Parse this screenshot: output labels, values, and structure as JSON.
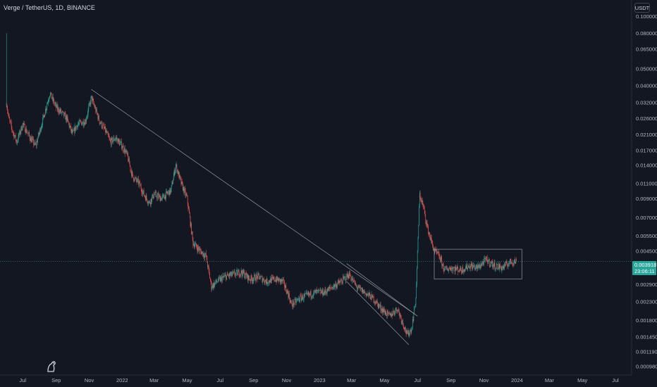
{
  "symbol_title": "Verge / TetherUS, 1D, BINANCE",
  "currency_label": "USDT",
  "current_price": "0.003918",
  "countdown": "23:06:11",
  "logo_icon": "tradingview-logo-icon",
  "colors": {
    "background": "#131722",
    "up": "#26a69a",
    "down": "#ef5350",
    "drawing": "#9598a1"
  },
  "chart_data": {
    "type": "candlestick",
    "title": "Verge / TetherUS, 1D, BINANCE",
    "y_scale": "log",
    "ylim": [
      0.00088,
      0.115
    ],
    "xlim": [
      "2021-05-20",
      "2024-07-31"
    ],
    "grid": false,
    "y_ticks": [
      "0.100000",
      "0.080000",
      "0.065000",
      "0.050000",
      "0.040000",
      "0.032000",
      "0.026000",
      "0.021000",
      "0.017000",
      "0.014000",
      "0.011000",
      "0.009000",
      "0.007000",
      "0.005500",
      "0.004500",
      "0.002900",
      "0.002300",
      "0.001800",
      "0.001450",
      "0.001190",
      "0.000980"
    ],
    "x_ticks": [
      {
        "label": "Jul",
        "date": "2021-07-01"
      },
      {
        "label": "Sep",
        "date": "2021-09-01"
      },
      {
        "label": "Nov",
        "date": "2021-11-01"
      },
      {
        "label": "2022",
        "date": "2022-01-01"
      },
      {
        "label": "Mar",
        "date": "2022-03-01"
      },
      {
        "label": "May",
        "date": "2022-05-01"
      },
      {
        "label": "Jul",
        "date": "2022-07-01"
      },
      {
        "label": "Sep",
        "date": "2022-09-01"
      },
      {
        "label": "Nov",
        "date": "2022-11-01"
      },
      {
        "label": "2023",
        "date": "2023-01-01"
      },
      {
        "label": "Mar",
        "date": "2023-03-01"
      },
      {
        "label": "May",
        "date": "2023-05-01"
      },
      {
        "label": "Jul",
        "date": "2023-07-01"
      },
      {
        "label": "Sep",
        "date": "2023-09-01"
      },
      {
        "label": "Nov",
        "date": "2023-11-01"
      },
      {
        "label": "2024",
        "date": "2024-01-01"
      },
      {
        "label": "Mar",
        "date": "2024-03-01"
      },
      {
        "label": "May",
        "date": "2024-05-01"
      },
      {
        "label": "Jul",
        "date": "2024-07-01"
      }
    ],
    "price_path": [
      [
        "2021-06-01",
        0.032
      ],
      [
        "2021-06-05",
        0.026
      ],
      [
        "2021-06-12",
        0.022
      ],
      [
        "2021-06-20",
        0.019
      ],
      [
        "2021-07-01",
        0.024
      ],
      [
        "2021-07-15",
        0.02
      ],
      [
        "2021-07-25",
        0.018
      ],
      [
        "2021-08-05",
        0.024
      ],
      [
        "2021-08-20",
        0.036
      ],
      [
        "2021-09-01",
        0.03
      ],
      [
        "2021-09-20",
        0.026
      ],
      [
        "2021-10-01",
        0.021
      ],
      [
        "2021-10-10",
        0.024
      ],
      [
        "2021-10-25",
        0.025
      ],
      [
        "2021-11-05",
        0.034
      ],
      [
        "2021-11-20",
        0.025
      ],
      [
        "2021-12-01",
        0.022
      ],
      [
        "2021-12-10",
        0.019
      ],
      [
        "2021-12-20",
        0.02
      ],
      [
        "2022-01-01",
        0.018
      ],
      [
        "2022-01-10",
        0.016
      ],
      [
        "2022-01-20",
        0.012
      ],
      [
        "2022-02-01",
        0.011
      ],
      [
        "2022-02-10",
        0.0095
      ],
      [
        "2022-02-20",
        0.0085
      ],
      [
        "2022-03-01",
        0.0095
      ],
      [
        "2022-03-15",
        0.009
      ],
      [
        "2022-04-01",
        0.01
      ],
      [
        "2022-04-10",
        0.014
      ],
      [
        "2022-04-20",
        0.011
      ],
      [
        "2022-05-01",
        0.009
      ],
      [
        "2022-05-12",
        0.005
      ],
      [
        "2022-05-25",
        0.0045
      ],
      [
        "2022-06-05",
        0.0042
      ],
      [
        "2022-06-15",
        0.0028
      ],
      [
        "2022-06-25",
        0.003
      ],
      [
        "2022-07-10",
        0.0032
      ],
      [
        "2022-07-25",
        0.0033
      ],
      [
        "2022-08-10",
        0.0034
      ],
      [
        "2022-08-25",
        0.0031
      ],
      [
        "2022-09-10",
        0.0032
      ],
      [
        "2022-09-25",
        0.003
      ],
      [
        "2022-10-10",
        0.0031
      ],
      [
        "2022-10-25",
        0.003
      ],
      [
        "2022-11-05",
        0.0025
      ],
      [
        "2022-11-10",
        0.0022
      ],
      [
        "2022-11-25",
        0.0024
      ],
      [
        "2022-12-10",
        0.0025
      ],
      [
        "2022-12-25",
        0.0026
      ],
      [
        "2023-01-10",
        0.0026
      ],
      [
        "2023-01-25",
        0.0028
      ],
      [
        "2023-02-10",
        0.003
      ],
      [
        "2023-02-25",
        0.0033
      ],
      [
        "2023-03-10",
        0.0028
      ],
      [
        "2023-03-25",
        0.0026
      ],
      [
        "2023-04-10",
        0.0024
      ],
      [
        "2023-04-25",
        0.0021
      ],
      [
        "2023-05-10",
        0.0019
      ],
      [
        "2023-05-25",
        0.0021
      ],
      [
        "2023-06-05",
        0.0017
      ],
      [
        "2023-06-12",
        0.00148
      ],
      [
        "2023-06-20",
        0.0016
      ],
      [
        "2023-06-28",
        0.0024
      ],
      [
        "2023-07-05",
        0.0095
      ],
      [
        "2023-07-12",
        0.008
      ],
      [
        "2023-07-20",
        0.006
      ],
      [
        "2023-08-01",
        0.0045
      ],
      [
        "2023-08-10",
        0.0042
      ],
      [
        "2023-08-20",
        0.0035
      ],
      [
        "2023-09-01",
        0.0036
      ],
      [
        "2023-09-20",
        0.0035
      ],
      [
        "2023-10-05",
        0.0037
      ],
      [
        "2023-10-20",
        0.0036
      ],
      [
        "2023-11-05",
        0.004
      ],
      [
        "2023-11-20",
        0.0037
      ],
      [
        "2023-12-05",
        0.0036
      ],
      [
        "2023-12-20",
        0.0039
      ],
      [
        "2023-12-31",
        0.003918
      ]
    ],
    "annotations": [
      {
        "type": "trendline",
        "from": [
          "2021-11-05",
          0.038
        ],
        "to": [
          "2023-07-01",
          0.0019
        ]
      },
      {
        "type": "trendline",
        "from": [
          "2023-02-20",
          0.0038
        ],
        "to": [
          "2023-07-01",
          0.0019
        ]
      },
      {
        "type": "trendline",
        "from": [
          "2023-02-20",
          0.003
        ],
        "to": [
          "2023-06-15",
          0.0013
        ]
      },
      {
        "type": "rectangle",
        "from": [
          "2023-08-01",
          0.0046
        ],
        "to": [
          "2024-01-10",
          0.0031
        ]
      }
    ]
  }
}
